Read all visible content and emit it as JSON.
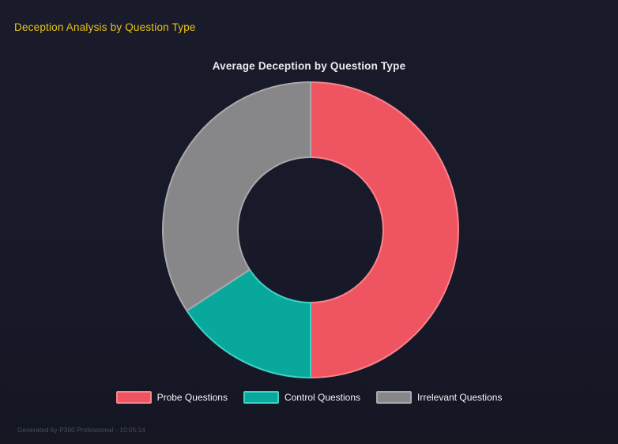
{
  "page": {
    "title": "Deception Analysis by Question Type",
    "title_color": "#e9c41a",
    "background_color": "#171929",
    "footer": "Generated by P300 Professional - 10:05:14",
    "footer_color": "#4b5065"
  },
  "chart_data": {
    "type": "pie",
    "variant": "donut",
    "title": "Average Deception by Question Type",
    "title_color": "#e9ebf0",
    "categories": [
      "Probe Questions",
      "Control Questions",
      "Irrelevant Questions"
    ],
    "values_percent": [
      50.0,
      15.8,
      34.2
    ],
    "colors": [
      "#ef5561",
      "#09a89d",
      "#87878a"
    ],
    "border_colors": [
      "#f9838c",
      "#3ed2c3",
      "#a9a9ad"
    ],
    "start_angle": "top",
    "direction": "clockwise",
    "inner_radius_ratio": 0.49,
    "legend_position": "bottom",
    "legend_text_color": "#f2f3f6"
  }
}
